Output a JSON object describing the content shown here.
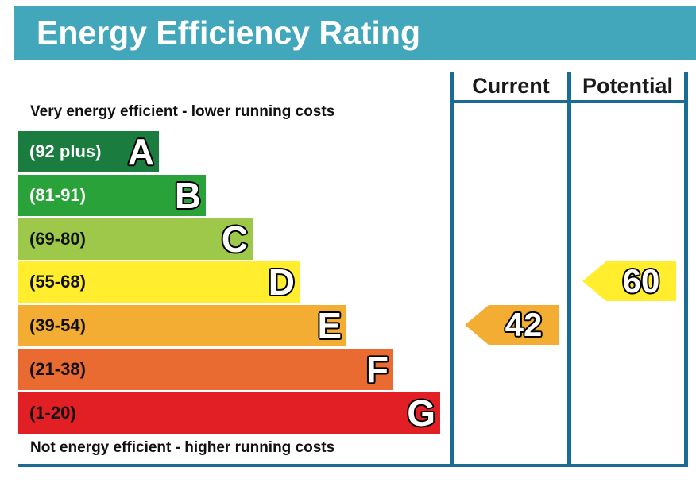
{
  "title": "Energy Efficiency Rating",
  "top_caption": "Very energy efficient - lower running costs",
  "bottom_caption": "Not energy efficient - higher running costs",
  "columns": {
    "current": "Current",
    "potential": "Potential"
  },
  "chart_data": {
    "type": "bar",
    "title": "Energy Efficiency Rating",
    "bands": [
      {
        "letter": "A",
        "range": "(92 plus)",
        "color": "#1b7c3f",
        "text_color": "#ffffff"
      },
      {
        "letter": "B",
        "range": "(81-91)",
        "color": "#2aa23a",
        "text_color": "#ffffff"
      },
      {
        "letter": "C",
        "range": "(69-80)",
        "color": "#9dc84a",
        "text_color": "#111111"
      },
      {
        "letter": "D",
        "range": "(55-68)",
        "color": "#ffed2e",
        "text_color": "#111111"
      },
      {
        "letter": "E",
        "range": "(39-54)",
        "color": "#f4ad33",
        "text_color": "#111111"
      },
      {
        "letter": "F",
        "range": "(21-38)",
        "color": "#ea6b31",
        "text_color": "#111111"
      },
      {
        "letter": "G",
        "range": "(1-20)",
        "color": "#e31f26",
        "text_color": "#111111"
      }
    ],
    "current": {
      "value": "42",
      "band": "E",
      "color": "#f4ad33"
    },
    "potential": {
      "value": "60",
      "band": "D",
      "color": "#ffed2e"
    }
  },
  "colors": {
    "header": "#42a7bb",
    "frame": "#1a6c94"
  }
}
